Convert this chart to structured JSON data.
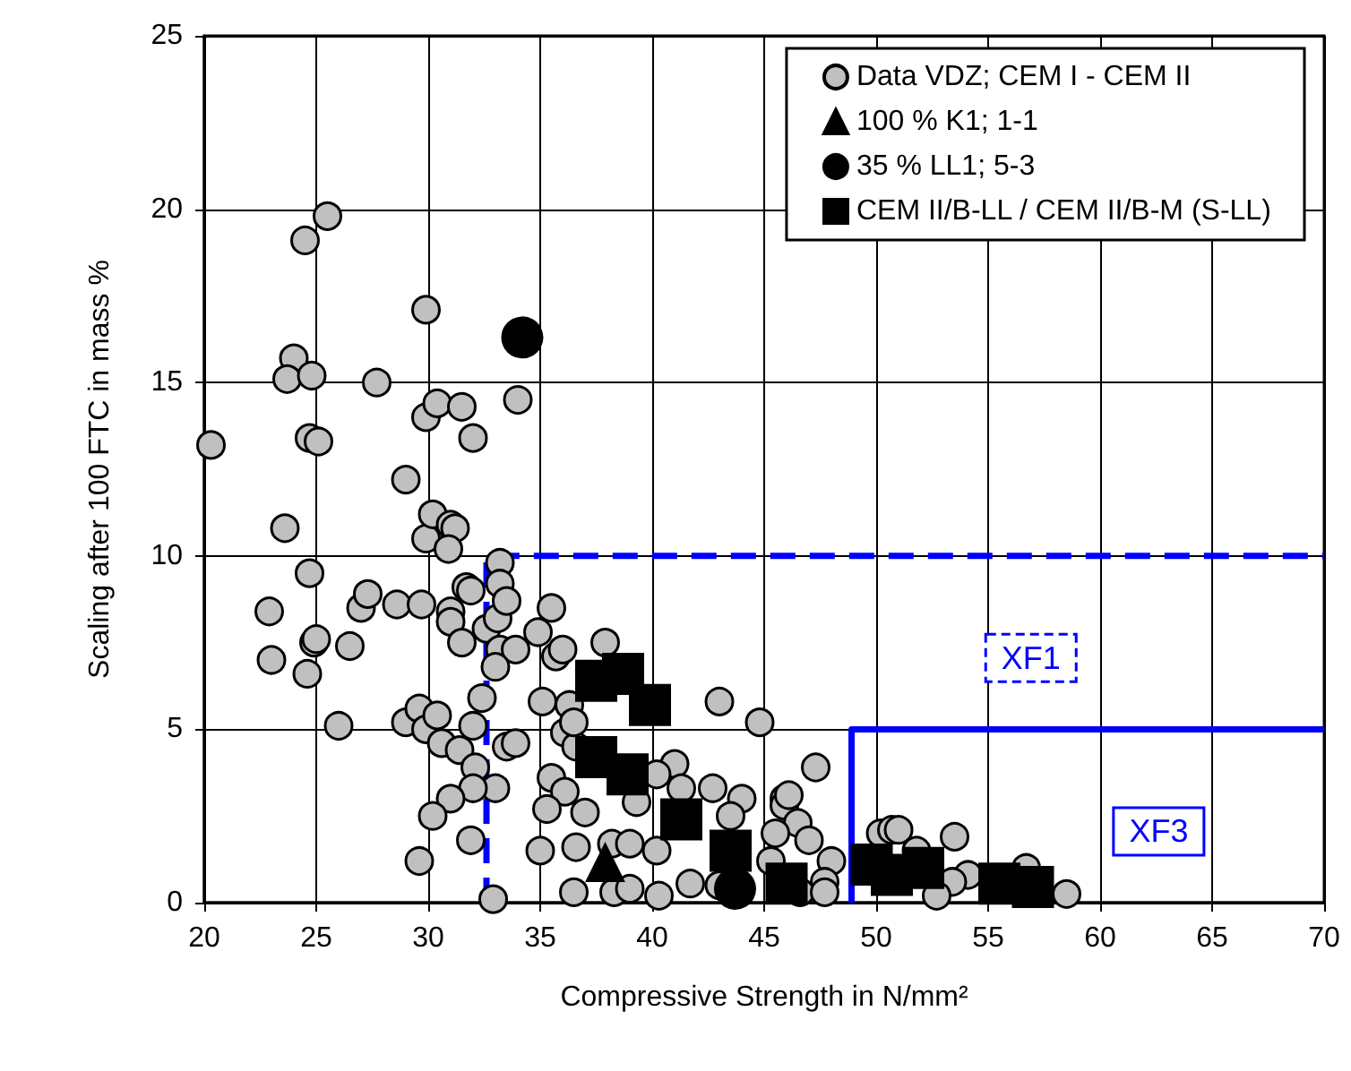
{
  "chart_data": {
    "type": "scatter",
    "xlabel": "Compressive Strength in N/mm²",
    "ylabel": "Scaling after 100 FTC in mass %",
    "xlim": [
      20,
      70
    ],
    "xticks": [
      20,
      25,
      30,
      35,
      40,
      45,
      50,
      55,
      60,
      65,
      70
    ],
    "ylim": [
      0,
      25
    ],
    "yticks": [
      0,
      5,
      10,
      15,
      20,
      25
    ],
    "grid": true,
    "legend": "top right",
    "annotations": [
      "XF1",
      "XF3"
    ],
    "series": [
      {
        "name": "Data VDZ; CEM I - CEM II",
        "color": "#c0c0c0",
        "marker": "circle",
        "x": [
          25.5,
          24.5,
          29.9,
          24.0,
          23.7,
          24.8,
          27.7,
          34.0,
          29.9,
          30.4,
          31.5,
          32.0,
          20.3,
          24.7,
          25.1,
          29.0,
          23.6,
          29.9,
          30.2,
          31.0,
          31.2,
          30.9,
          33.2,
          33.2,
          24.7,
          22.9,
          23.0,
          24.6,
          24.9,
          25.0,
          26.5,
          27.0,
          27.3,
          28.6,
          29.7,
          31.0,
          31.0,
          31.7,
          31.9,
          31.5,
          32.6,
          33.1,
          33.5,
          33.2,
          33.9,
          33.0,
          35.5,
          34.9,
          35.7,
          36.0,
          32.4,
          35.1,
          29.0,
          29.6,
          29.9,
          30.4,
          26.0,
          32.0,
          36.3,
          36.1,
          36.6,
          30.6,
          31.4,
          32.1,
          33.5,
          33.9,
          33.0,
          32.0,
          31.0,
          30.2,
          35.5,
          36.1,
          35.3,
          36.6,
          31.9,
          29.6,
          35.0,
          32.9,
          36.5,
          37.9,
          43.0,
          44.8,
          47.3,
          36.5,
          37.0,
          38.2,
          39.0,
          40.2,
          41.0,
          39.3,
          40.2,
          41.3,
          42.7,
          44.0,
          43.5,
          45.9,
          45.9,
          46.5,
          47.0,
          45.5,
          48.0,
          47.7,
          38.3,
          39.0,
          40.3,
          41.7,
          43.0,
          46.6,
          47.7,
          45.3,
          50.2,
          50.7,
          51.0,
          53.5,
          51.8,
          54.1,
          53.4,
          52.7,
          56.7,
          58.5,
          46.1
        ],
        "values": [
          19.8,
          19.1,
          17.1,
          15.7,
          15.1,
          15.2,
          15.0,
          14.5,
          14.0,
          14.4,
          14.3,
          13.4,
          13.2,
          13.4,
          13.3,
          12.2,
          10.8,
          10.5,
          11.2,
          10.9,
          10.8,
          10.2,
          9.8,
          9.2,
          9.5,
          8.4,
          7.0,
          6.6,
          7.5,
          7.6,
          7.4,
          8.5,
          8.9,
          8.6,
          8.6,
          8.4,
          8.1,
          9.1,
          9.0,
          7.5,
          7.9,
          8.2,
          8.7,
          7.3,
          7.3,
          6.8,
          8.5,
          7.8,
          7.1,
          7.3,
          5.9,
          5.8,
          5.2,
          5.6,
          5.0,
          5.4,
          5.1,
          5.1,
          5.7,
          4.9,
          4.5,
          4.6,
          4.4,
          3.9,
          4.5,
          4.6,
          3.3,
          3.3,
          3.0,
          2.5,
          3.6,
          3.2,
          2.7,
          1.6,
          1.8,
          1.2,
          1.5,
          0.1,
          0.3,
          7.5,
          5.8,
          5.2,
          3.9,
          5.2,
          2.6,
          1.7,
          1.7,
          1.5,
          4.0,
          2.9,
          3.7,
          3.3,
          3.3,
          3.0,
          2.5,
          3.0,
          2.8,
          2.3,
          1.8,
          2.0,
          1.2,
          0.6,
          0.3,
          0.4,
          0.2,
          0.55,
          0.5,
          0.3,
          0.3,
          1.2,
          2.0,
          2.1,
          2.1,
          1.9,
          1.5,
          0.8,
          0.6,
          0.2,
          1.0,
          0.25,
          3.1
        ]
      },
      {
        "name": "100 % K1; 1-1",
        "color": "#000000",
        "marker": "triangle",
        "x": [
          37.9
        ],
        "values": [
          1.15
        ]
      },
      {
        "name": "35 % LL1; 5-3",
        "color": "#000000",
        "marker": "circle",
        "x": [
          34.2,
          43.7
        ],
        "values": [
          16.3,
          0.4
        ]
      },
      {
        "name": "CEM II/B-LL / CEM II/B-M (S-LL)",
        "color": "#000000",
        "marker": "square",
        "x": [
          37.5,
          38.7,
          39.9,
          37.5,
          38.9,
          41.3,
          43.5,
          46.0,
          49.8,
          50.7,
          52.1,
          55.5,
          57.0
        ],
        "values": [
          6.4,
          6.6,
          5.7,
          4.2,
          3.7,
          2.4,
          1.5,
          0.55,
          1.1,
          0.8,
          1.0,
          0.55,
          0.45
        ]
      },
      {
        "type": "line",
        "color": "#0000ff",
        "line_style": "dashed",
        "marker": "none",
        "x": [
          32.6,
          32.6,
          70
        ],
        "values": [
          0,
          10,
          10
        ]
      },
      {
        "type": "line",
        "color": "#0000ff",
        "line_style": "solid",
        "marker": "none",
        "x": [
          48.9,
          48.9,
          70
        ],
        "values": [
          0,
          5,
          5
        ]
      }
    ]
  }
}
